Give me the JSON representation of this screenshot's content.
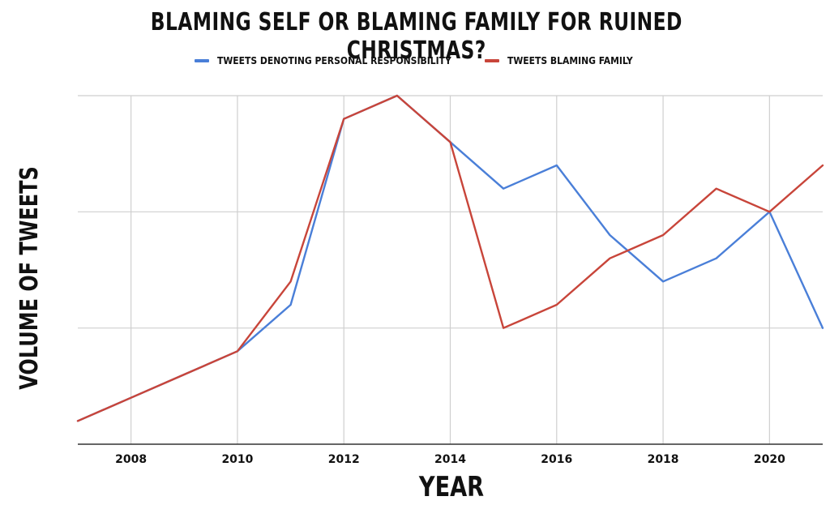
{
  "chart_data": {
    "type": "line",
    "title": "BLAMING SELF OR BLAMING FAMILY FOR RUINED CHRISTMAS?",
    "xlabel": "YEAR",
    "ylabel": "VOLUME OF TWEETS",
    "x": [
      2007,
      2008,
      2009,
      2010,
      2011,
      2012,
      2013,
      2014,
      2015,
      2016,
      2017,
      2018,
      2019,
      2020,
      2021
    ],
    "x_ticks": [
      "2008",
      "2010",
      "2012",
      "2014",
      "2016",
      "2018",
      "2020"
    ],
    "xlim": [
      2007,
      2021
    ],
    "ylim": [
      0,
      15
    ],
    "y_ticks_labeled": false,
    "grid": true,
    "legend_position": "top-center",
    "series": [
      {
        "name": "TWEETS DENOTING PERSONAL RESPONSIBILITY",
        "color": "#4a7fd8",
        "values": [
          1,
          2,
          3,
          4,
          6,
          14,
          15,
          13,
          11,
          12,
          9,
          7,
          8,
          10,
          5
        ]
      },
      {
        "name": "TWEETS BLAMING FAMILY",
        "color": "#c8453a",
        "values": [
          1,
          2,
          3,
          4,
          7,
          14,
          15,
          13,
          5,
          6,
          8,
          9,
          11,
          10,
          12
        ]
      }
    ]
  }
}
